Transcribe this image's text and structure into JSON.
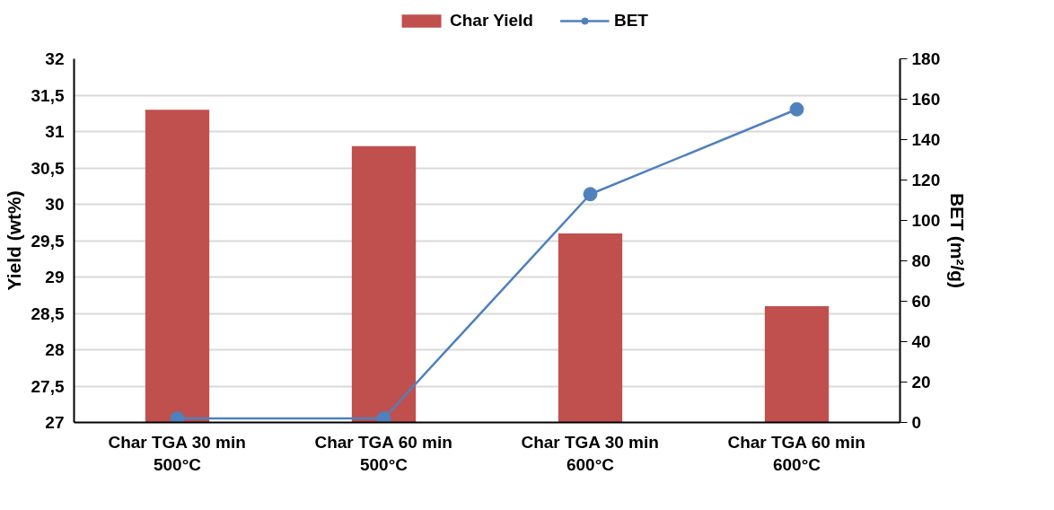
{
  "chart_data": {
    "type": "bar",
    "categories": [
      "Char TGA 30 min\n500°C",
      "Char TGA 60 min\n500°C",
      "Char TGA 30 min\n600°C",
      "Char TGA 60 min\n600°C"
    ],
    "series": [
      {
        "name": "Char Yield",
        "color": "#c0504d",
        "values": [
          31.3,
          30.8,
          29.6,
          28.6
        ]
      },
      {
        "name": "BET",
        "type": "line",
        "axis": "y2",
        "color": "#4f81bd",
        "marker": "circle",
        "values": [
          2,
          2,
          113,
          155
        ]
      }
    ],
    "ylabel": "Yield (wt%)",
    "y2label": "BET (m²/g)",
    "ylim": [
      27,
      32
    ],
    "yticks": [
      27,
      {
        "value": 27.5,
        "label": "27,5"
      },
      28,
      {
        "value": 28.5,
        "label": "28,5"
      },
      29,
      {
        "value": 29.5,
        "label": "29,5"
      },
      30,
      {
        "value": 30.5,
        "label": "30,5"
      },
      31,
      {
        "value": 31.5,
        "label": "31,5"
      },
      32
    ],
    "y2lim": [
      0,
      180
    ],
    "y2ticks": [
      0,
      20,
      40,
      60,
      80,
      100,
      120,
      140,
      160,
      180
    ],
    "grid": "y",
    "legend": "top"
  }
}
